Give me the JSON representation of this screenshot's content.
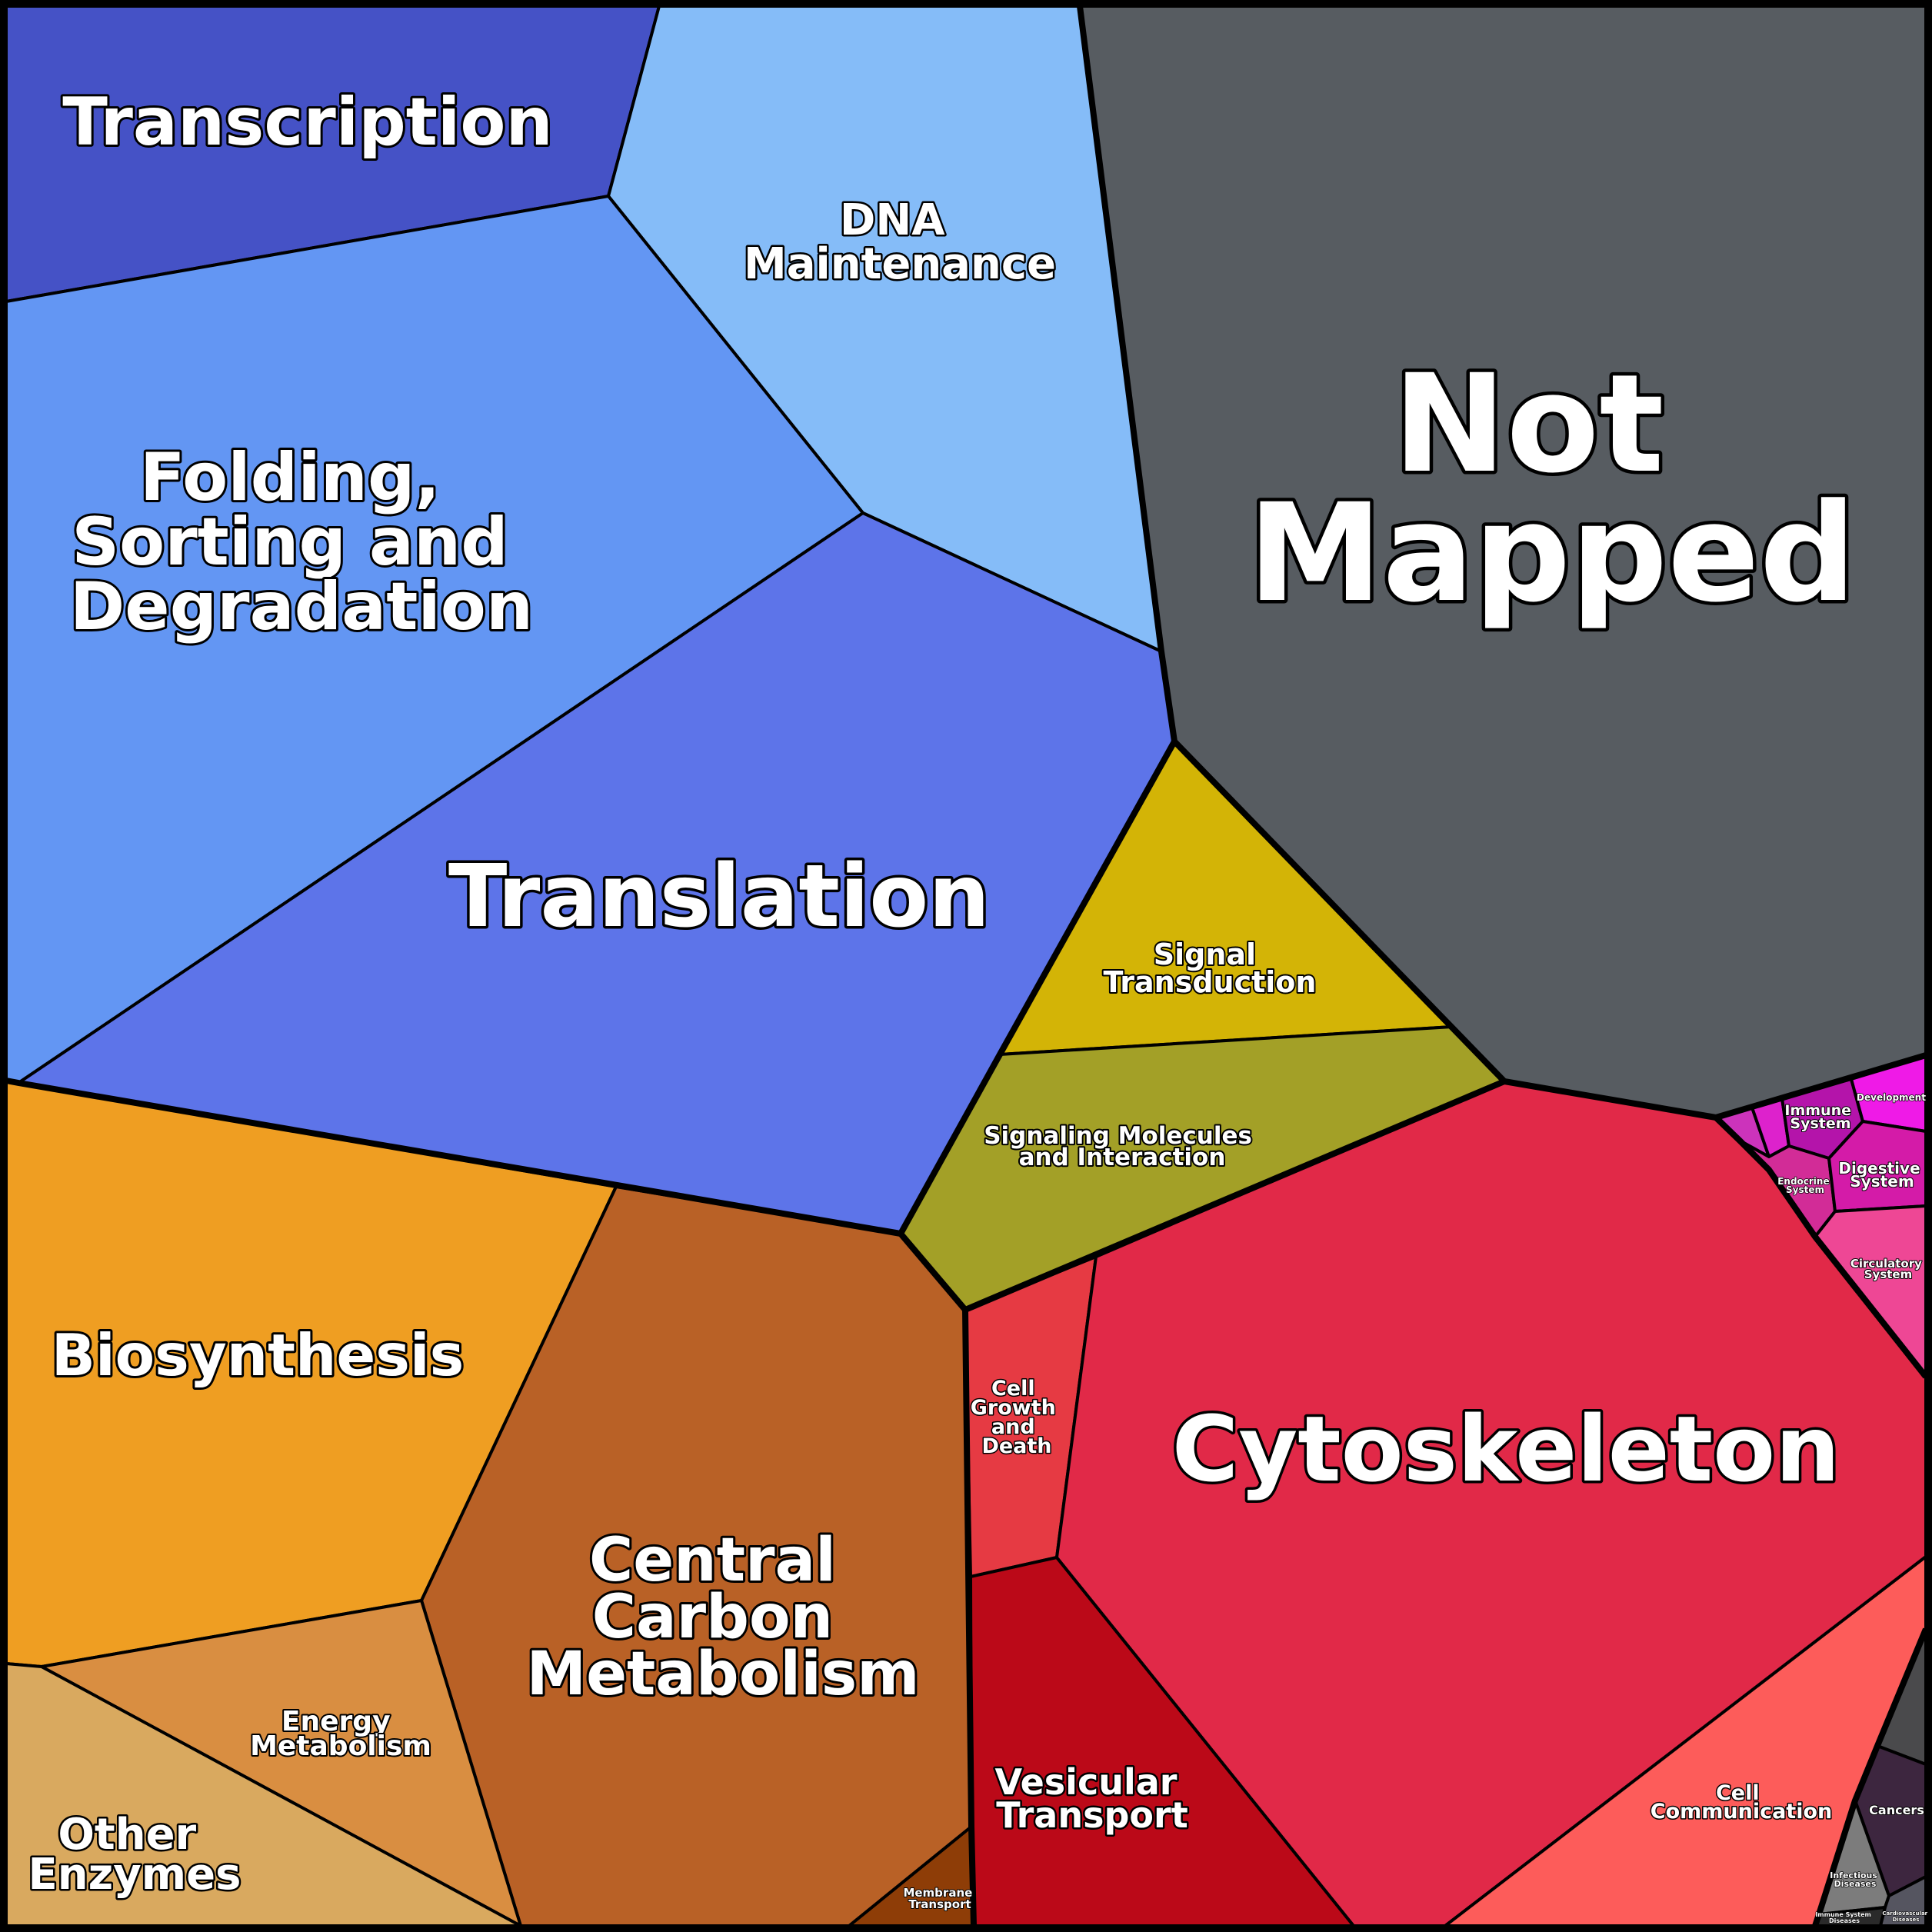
{
  "palette": {
    "outline": "#000000",
    "label_text": "#ffffff",
    "colors": {
      "transcription": "#4552c6",
      "dna_maintenance": "#85bcf8",
      "folding": "#6396f3",
      "translation": "#5d74e9",
      "not_mapped": "#575c61",
      "signal_transduction": "#d3b406",
      "signaling_molecules": "#a3a027",
      "biosynthesis": "#ef9e22",
      "central_carbon": "#b96126",
      "energy": "#d98e41",
      "other_enzymes": "#d9a95f",
      "membrane_transport": "#8e3d07",
      "cell_growth": "#e63a43",
      "vesicular": "#bb0918",
      "cytoskeleton": "#e12948",
      "cell_communication": "#fd5c5a",
      "organismal_tiny_a": "#cc33bb",
      "organismal_tiny_b": "#dd22cc",
      "immune": "#b414aa",
      "development": "#ef1ae7",
      "endocrine": "#d22c97",
      "digestive": "#d41ba8",
      "circulatory": "#ee4795",
      "sensory": "#e92fb8",
      "unknown_disease": "#4a4a4c",
      "cancers": "#3d263f",
      "infectious": "#7c7c7c",
      "immune_disease": "#2a2a2a",
      "cardiovascular": "#555560"
    }
  },
  "labels": {
    "transcription": "Transcription",
    "dna_maintenance": [
      "DNA",
      "Maintenance"
    ],
    "folding": [
      "Folding,",
      "Sorting and",
      "Degradation"
    ],
    "translation": "Translation",
    "not_mapped": [
      "Not",
      "Mapped"
    ],
    "signal_transduction": [
      "Signal",
      "Transduction"
    ],
    "signaling_molecules": [
      "Signaling Molecules",
      "and Interaction"
    ],
    "biosynthesis": "Biosynthesis",
    "central_carbon": [
      "Central",
      "Carbon",
      "Metabolism"
    ],
    "energy": [
      "Energy",
      "Metabolism"
    ],
    "other_enzymes": [
      "Other",
      "Enzymes"
    ],
    "membrane_transport": [
      "Membrane",
      "Transport"
    ],
    "cell_growth": [
      "Cell",
      "Growth",
      "and",
      "Death"
    ],
    "vesicular": [
      "Vesicular",
      "Transport"
    ],
    "cytoskeleton": "Cytoskeleton",
    "cell_communication": [
      "Cell",
      "Communication"
    ],
    "immune": [
      "Immune",
      "System"
    ],
    "development": "Development",
    "endocrine": [
      "Endocrine",
      "System"
    ],
    "digestive": [
      "Digestive",
      "System"
    ],
    "circulatory": [
      "Circulatory",
      "System"
    ],
    "cancers": "Cancers",
    "infectious": [
      "Infectious",
      "Diseases"
    ],
    "immune_disease": [
      "Immune System",
      "Diseases"
    ],
    "cardiovascular": [
      "Cardiovascular",
      "Diseases"
    ]
  }
}
